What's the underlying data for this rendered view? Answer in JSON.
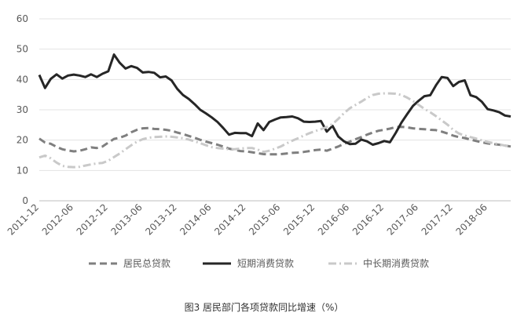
{
  "caption": "图3 居民部门各项贷款同比增速（%）",
  "chart_data": {
    "type": "line",
    "title": "",
    "xlabel": "",
    "ylabel": "",
    "ylim": [
      0,
      60
    ],
    "y_ticks": [
      "0",
      "10",
      "20",
      "30",
      "40",
      "50",
      "60"
    ],
    "x_tick_labels": [
      "2011-12",
      "2012-06",
      "2012-12",
      "2013-06",
      "2013-12",
      "2014-06",
      "2014-12",
      "2015-06",
      "2015-12",
      "2016-06",
      "2016-12",
      "2017-06",
      "2017-12",
      "2018-06"
    ],
    "x": [
      "2011-12",
      "2012-01",
      "2012-02",
      "2012-03",
      "2012-04",
      "2012-05",
      "2012-06",
      "2012-07",
      "2012-08",
      "2012-09",
      "2012-10",
      "2012-11",
      "2012-12",
      "2013-01",
      "2013-02",
      "2013-03",
      "2013-04",
      "2013-05",
      "2013-06",
      "2013-07",
      "2013-08",
      "2013-09",
      "2013-10",
      "2013-11",
      "2013-12",
      "2014-01",
      "2014-02",
      "2014-03",
      "2014-04",
      "2014-05",
      "2014-06",
      "2014-07",
      "2014-08",
      "2014-09",
      "2014-10",
      "2014-11",
      "2014-12",
      "2015-01",
      "2015-02",
      "2015-03",
      "2015-04",
      "2015-05",
      "2015-06",
      "2015-07",
      "2015-08",
      "2015-09",
      "2015-10",
      "2015-11",
      "2015-12",
      "2016-01",
      "2016-02",
      "2016-03",
      "2016-04",
      "2016-05",
      "2016-06",
      "2016-07",
      "2016-08",
      "2016-09",
      "2016-10",
      "2016-11",
      "2016-12",
      "2017-01",
      "2017-02",
      "2017-03",
      "2017-04",
      "2017-05",
      "2017-06",
      "2017-07",
      "2017-08",
      "2017-09",
      "2017-10",
      "2017-11",
      "2017-12",
      "2018-01",
      "2018-02",
      "2018-03",
      "2018-04",
      "2018-05",
      "2018-06",
      "2018-07",
      "2018-08",
      "2018-09",
      "2018-10"
    ],
    "grid": "horizontal",
    "legend_position": "bottom",
    "series": [
      {
        "name": "居民总贷款",
        "color": "#7f7f7f",
        "style": "dashed",
        "values": [
          20.5,
          19.2,
          18.8,
          17.8,
          17.0,
          16.6,
          16.3,
          16.5,
          17.0,
          17.6,
          17.4,
          17.9,
          19.2,
          20.4,
          20.8,
          21.5,
          22.6,
          23.4,
          23.9,
          24.0,
          23.7,
          23.6,
          23.4,
          23.1,
          22.5,
          22.0,
          21.4,
          20.8,
          20.1,
          19.5,
          19.0,
          18.5,
          17.9,
          17.2,
          16.8,
          16.4,
          16.3,
          16.0,
          15.7,
          15.4,
          15.3,
          15.3,
          15.4,
          15.6,
          15.8,
          15.9,
          16.1,
          16.4,
          16.7,
          16.9,
          16.5,
          17.2,
          17.9,
          18.8,
          19.5,
          20.3,
          21.0,
          21.8,
          22.5,
          23.1,
          23.4,
          23.8,
          24.3,
          24.4,
          24.2,
          23.9,
          23.7,
          23.6,
          23.4,
          23.3,
          22.8,
          22.2,
          21.5,
          21.0,
          20.7,
          20.2,
          19.7,
          19.3,
          18.9,
          18.7,
          18.5,
          18.2,
          17.9
        ]
      },
      {
        "name": "短期消费贷款",
        "color": "#262626",
        "style": "solid",
        "values": [
          41.5,
          37.2,
          40.2,
          41.7,
          40.3,
          41.3,
          41.6,
          41.3,
          40.8,
          41.7,
          40.8,
          41.9,
          42.7,
          48.2,
          45.5,
          43.6,
          44.4,
          43.8,
          42.3,
          42.5,
          42.2,
          40.7,
          41.0,
          39.7,
          36.9,
          34.9,
          33.6,
          31.9,
          30.0,
          28.8,
          27.5,
          26.0,
          24.0,
          21.8,
          22.4,
          22.3,
          22.3,
          21.3,
          25.5,
          23.3,
          26.0,
          26.8,
          27.5,
          27.6,
          27.8,
          27.2,
          26.1,
          26.0,
          26.1,
          26.3,
          22.8,
          24.7,
          21.2,
          19.6,
          18.7,
          18.8,
          20.2,
          19.6,
          18.5,
          19.0,
          19.7,
          19.3,
          22.4,
          25.8,
          28.6,
          31.3,
          33.0,
          34.5,
          34.8,
          38.1,
          40.8,
          40.5,
          37.8,
          39.2,
          39.7,
          34.8,
          34.2,
          32.6,
          30.2,
          29.8,
          29.2,
          28.1,
          27.8
        ]
      },
      {
        "name": "中长期消费贷款",
        "color": "#c9c9c9",
        "style": "dash-dot",
        "values": [
          14.3,
          14.9,
          14.0,
          12.6,
          11.5,
          11.2,
          11.1,
          11.2,
          11.6,
          12.0,
          12.3,
          12.5,
          13.2,
          14.4,
          15.6,
          17.0,
          18.3,
          19.5,
          20.3,
          20.8,
          21.0,
          21.1,
          21.2,
          21.1,
          20.9,
          20.6,
          20.2,
          19.6,
          19.0,
          18.3,
          17.7,
          17.4,
          17.2,
          17.0,
          17.0,
          17.2,
          17.4,
          17.4,
          16.9,
          16.1,
          16.5,
          17.2,
          17.9,
          18.9,
          19.8,
          20.6,
          21.5,
          22.3,
          23.0,
          23.6,
          24.3,
          25.3,
          27.0,
          28.9,
          30.5,
          31.6,
          32.7,
          33.9,
          34.9,
          35.3,
          35.4,
          35.4,
          35.3,
          34.9,
          34.0,
          32.9,
          31.6,
          30.3,
          29.2,
          27.9,
          26.5,
          25.1,
          23.4,
          22.2,
          21.5,
          21.0,
          20.5,
          19.9,
          19.4,
          19.0,
          18.6,
          18.2,
          17.8
        ]
      }
    ]
  }
}
